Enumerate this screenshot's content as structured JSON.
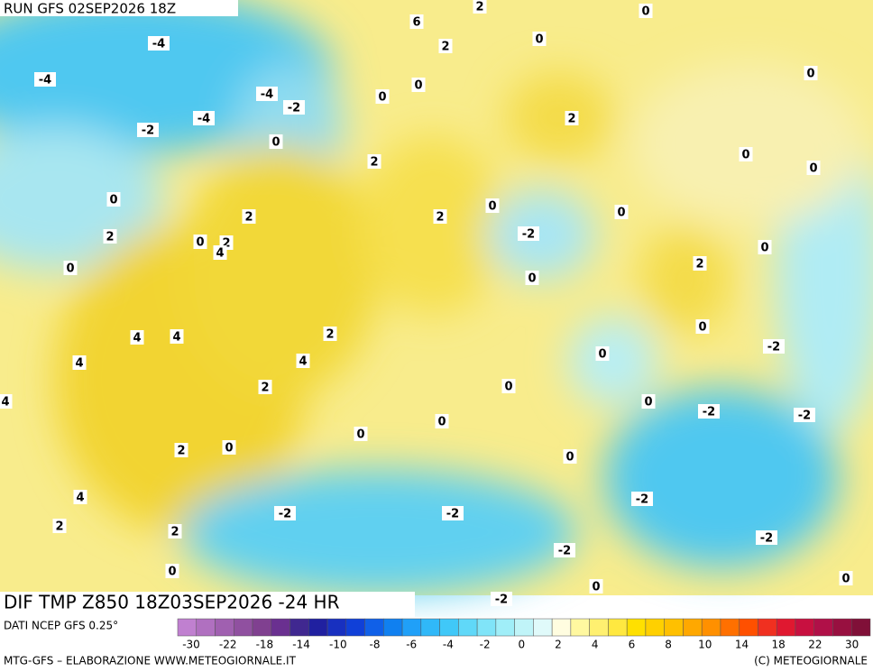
{
  "header": {
    "run": "RUN GFS 02SEP2026 18Z"
  },
  "footer": {
    "title": "DIF TMP Z850 18Z03SEP2026 -24 HR",
    "source": "DATI NCEP GFS 0.25°",
    "credit_left": "MTG-GFS – ELABORAZIONE WWW.METEOGIORNALE.IT",
    "credit_right": "(C) METEOGIORNALE"
  },
  "colorbar": {
    "labels": [
      "-30",
      "-22",
      "-18",
      "-14",
      "-10",
      "-8",
      "-6",
      "-4",
      "-2",
      "0",
      "2",
      "4",
      "6",
      "8",
      "10",
      "14",
      "18",
      "22",
      "30"
    ],
    "colors": [
      "#c080d0",
      "#b070c0",
      "#a060b0",
      "#9050a0",
      "#804090",
      "#6a3090",
      "#402890",
      "#2020a0",
      "#1830c0",
      "#1040d8",
      "#1060e8",
      "#1080f0",
      "#20a0f8",
      "#30b8f8",
      "#40c8f8",
      "#60d8f8",
      "#80e4f8",
      "#a0eef8",
      "#c0f4f8",
      "#e0fafa",
      "#fffde0",
      "#fff8a0",
      "#fff070",
      "#ffe840",
      "#ffe000",
      "#ffd000",
      "#ffc000",
      "#ffa800",
      "#ff9000",
      "#ff7000",
      "#ff5000",
      "#f03020",
      "#e01830",
      "#c81040",
      "#b01048",
      "#981040",
      "#801038"
    ]
  },
  "map": {
    "labels": [
      "-4",
      "-4",
      "-4",
      "-4",
      "-2",
      "-2",
      "0",
      "6",
      "2",
      "2",
      "0",
      "0",
      "0",
      "0",
      "2",
      "0",
      "0",
      "0",
      "2",
      "0",
      "2",
      "2",
      "0",
      "0",
      "2",
      "0",
      "2",
      "4",
      "0",
      "-2",
      "0",
      "2",
      "0",
      "4",
      "4",
      "2",
      "4",
      "4",
      "2",
      "0",
      "-2",
      "0",
      "0",
      "0",
      "4",
      "-2",
      "-2",
      "0",
      "0",
      "2",
      "0",
      "0",
      "-2",
      "4",
      "-2",
      "-2",
      "2",
      "2",
      "-2",
      "-2",
      "0",
      "0",
      "0",
      "-2"
    ]
  }
}
